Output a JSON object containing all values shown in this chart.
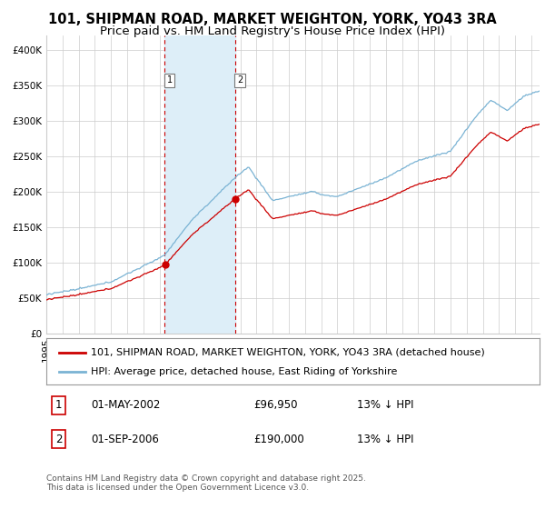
{
  "title": "101, SHIPMAN ROAD, MARKET WEIGHTON, YORK, YO43 3RA",
  "subtitle": "Price paid vs. HM Land Registry's House Price Index (HPI)",
  "legend_line1": "101, SHIPMAN ROAD, MARKET WEIGHTON, YORK, YO43 3RA (detached house)",
  "legend_line2": "HPI: Average price, detached house, East Riding of Yorkshire",
  "table_rows": [
    {
      "num": "1",
      "date": "01-MAY-2002",
      "price": "£96,950",
      "change": "13% ↓ HPI"
    },
    {
      "num": "2",
      "date": "01-SEP-2006",
      "price": "£190,000",
      "change": "13% ↓ HPI"
    }
  ],
  "footnote": "Contains HM Land Registry data © Crown copyright and database right 2025.\nThis data is licensed under the Open Government Licence v3.0.",
  "hpi_color": "#7ab3d4",
  "price_color": "#cc0000",
  "dot_color": "#cc0000",
  "shade_color": "#ddeef8",
  "vline_color": "#cc0000",
  "bg_color": "#ffffff",
  "grid_color": "#cccccc",
  "ylim": [
    0,
    420000
  ],
  "yticks": [
    0,
    50000,
    100000,
    150000,
    200000,
    250000,
    300000,
    350000,
    400000
  ],
  "ytick_labels": [
    "£0",
    "£50K",
    "£100K",
    "£150K",
    "£200K",
    "£250K",
    "£300K",
    "£350K",
    "£400K"
  ],
  "sale1_year": 2002.33,
  "sale1_price": 96950,
  "sale2_year": 2006.67,
  "sale2_price": 190000,
  "title_fontsize": 10.5,
  "subtitle_fontsize": 9.5,
  "tick_fontsize": 7.5,
  "legend_fontsize": 8,
  "table_fontsize": 8.5,
  "footnote_fontsize": 6.5
}
